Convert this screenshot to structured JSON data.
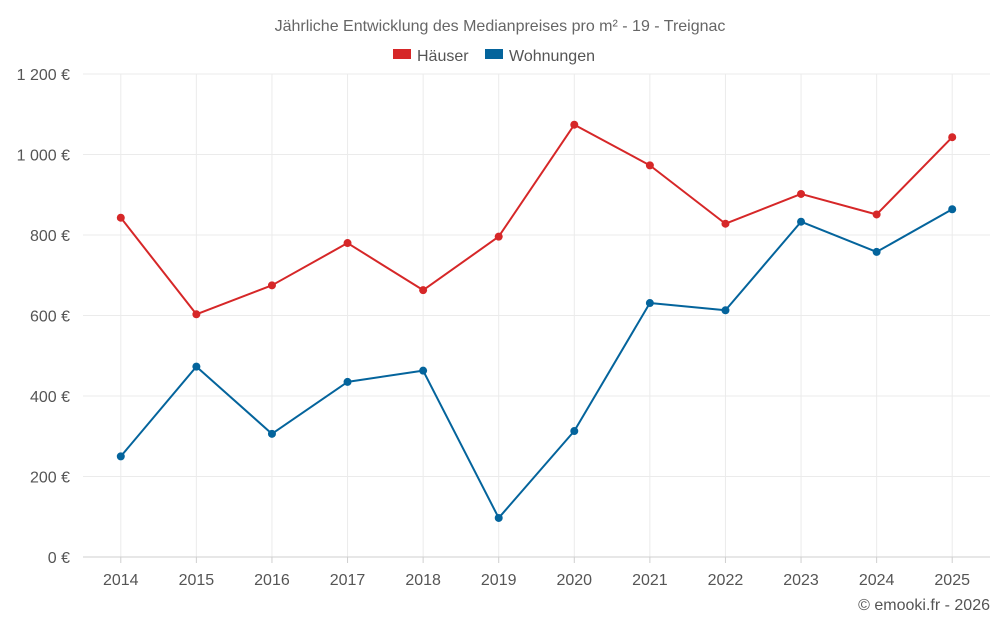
{
  "chart_data": {
    "type": "line",
    "title": "Jährliche Entwicklung des Medianpreises pro m² - 19 - Treignac",
    "categories": [
      "2014",
      "2015",
      "2016",
      "2017",
      "2018",
      "2019",
      "2020",
      "2021",
      "2022",
      "2023",
      "2024",
      "2025"
    ],
    "series": [
      {
        "name": "Häuser",
        "color": "#d62728",
        "values": [
          843,
          603,
          675,
          780,
          663,
          796,
          1074,
          973,
          828,
          902,
          851,
          1043
        ]
      },
      {
        "name": "Wohnungen",
        "color": "#04649c",
        "values": [
          250,
          473,
          306,
          435,
          463,
          97,
          313,
          631,
          613,
          833,
          758,
          864
        ]
      }
    ],
    "ylim": [
      0,
      1200
    ],
    "yticks": [
      0,
      200,
      400,
      600,
      800,
      1000,
      1200
    ],
    "ytick_labels": [
      "0 €",
      "200 €",
      "400 €",
      "600 €",
      "800 €",
      "1 000 €",
      "1 200 €"
    ],
    "xlabel": "",
    "ylabel": "",
    "grid": true,
    "legend": "top-center"
  },
  "credit": "© emooki.fr - 2026"
}
